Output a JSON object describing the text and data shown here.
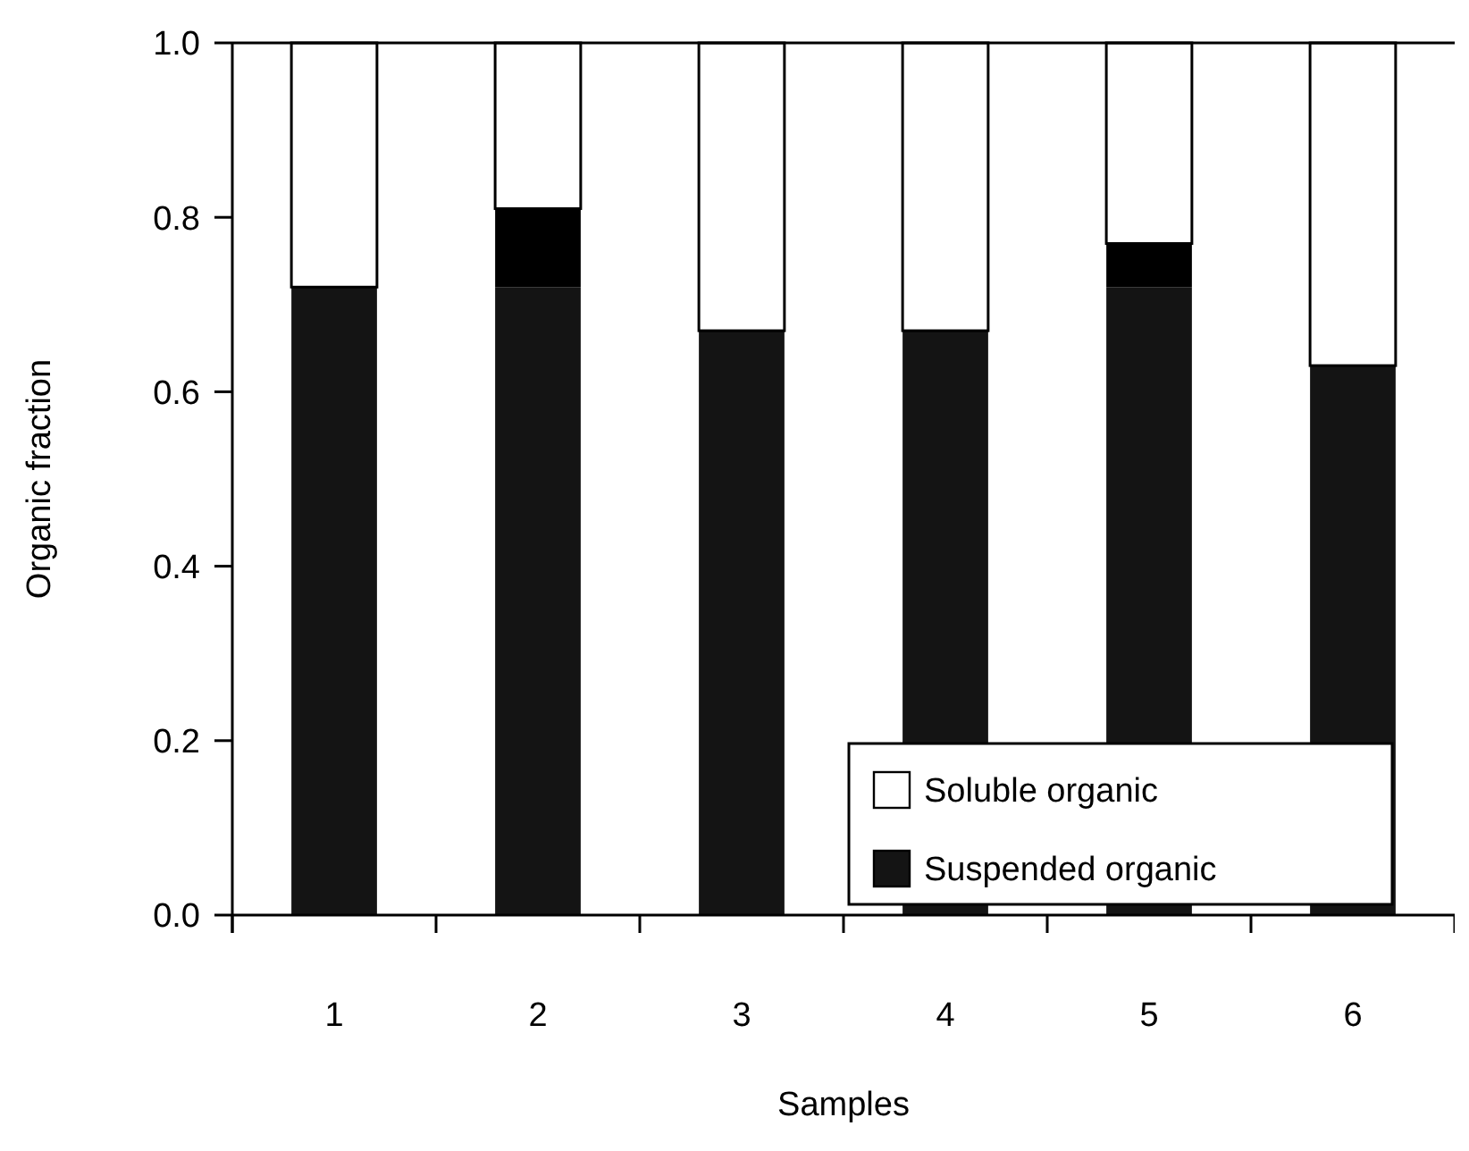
{
  "chart_data": {
    "type": "bar",
    "stacked": true,
    "xlabel": "Samples",
    "ylabel": "Organic fraction",
    "categories": [
      "1",
      "2",
      "3",
      "4",
      "5",
      "6"
    ],
    "series": [
      {
        "name": "Suspended organic",
        "color": "#141414",
        "values": [
          0.72,
          0.72,
          0.67,
          0.67,
          0.72,
          0.63
        ]
      },
      {
        "color": "#000000",
        "values": [
          null,
          0.09,
          null,
          null,
          0.05,
          null
        ]
      },
      {
        "name": "Soluble organic",
        "color": "#ffffff",
        "values": [
          0.28,
          0.19,
          0.33,
          0.33,
          0.23,
          0.37
        ]
      }
    ],
    "ylim": [
      0,
      1
    ],
    "yticks": [
      {
        "value": 0,
        "label": "0.0"
      },
      {
        "value": 0.2,
        "label": "0.2"
      },
      {
        "value": 0.4,
        "label": "0.4"
      },
      {
        "value": 0.6,
        "label": "0.6"
      },
      {
        "value": 0.8,
        "label": "0.8"
      },
      {
        "value": 1,
        "label": "1.0"
      }
    ],
    "legend": "bottom right"
  }
}
